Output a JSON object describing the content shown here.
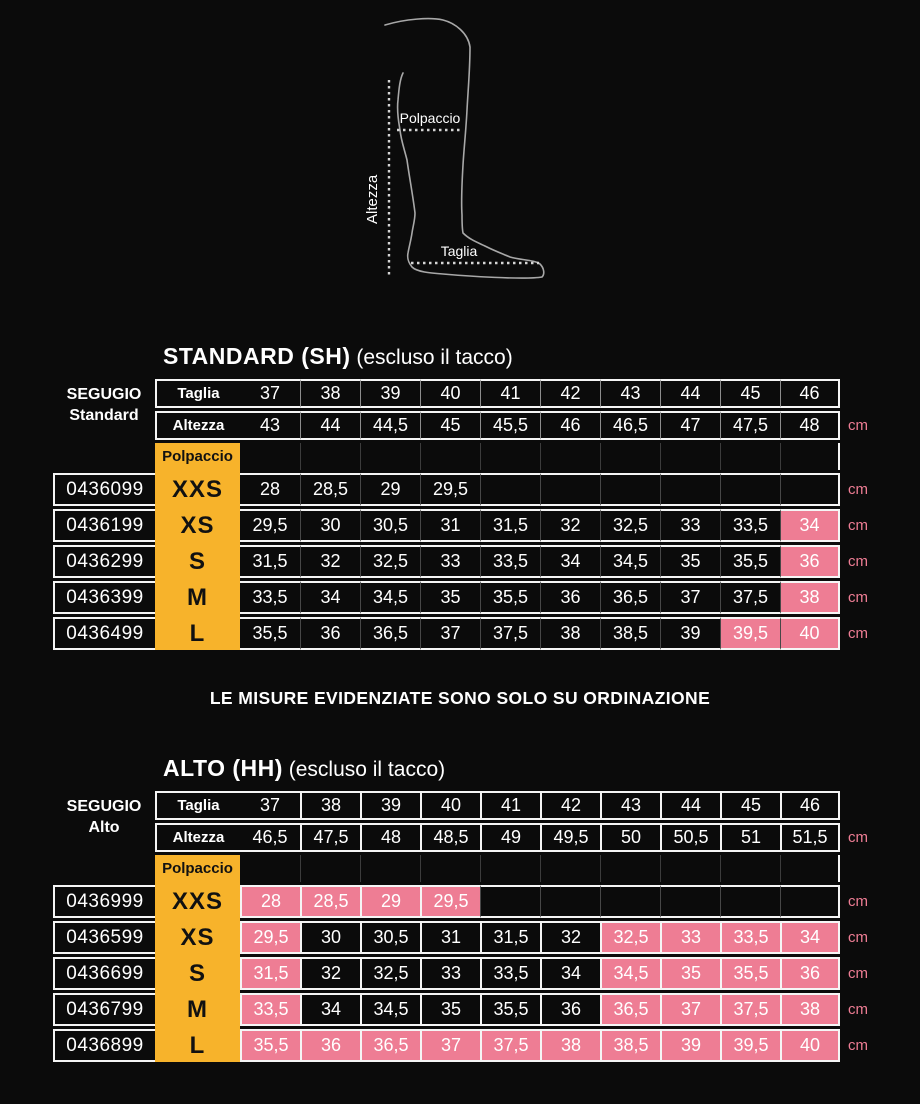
{
  "diagram": {
    "calf_label": "Polpaccio",
    "height_label": "Altezza",
    "size_label": "Taglia"
  },
  "note": "LE MISURE EVIDENZIATE SONO SOLO SU ORDINAZIONE",
  "colors": {
    "yellow": "#F7B32B",
    "pink": "#EE7D94",
    "cm_text": "#EE7D94",
    "border": "#F5F5F5",
    "background": "#0B0B0B"
  },
  "tables": [
    {
      "title_bold": "STANDARD (SH)",
      "title_rest": " (escluso il tacco)",
      "side_label_1": "SEGUGIO",
      "side_label_2": "Standard",
      "unit": "cm",
      "taglia_label": "Taglia",
      "altezza_label": "Altezza",
      "polpaccio_label": "Polpaccio",
      "taglia": [
        "37",
        "38",
        "39",
        "40",
        "41",
        "42",
        "43",
        "44",
        "45",
        "46"
      ],
      "altezza": [
        "43",
        "44",
        "44,5",
        "45",
        "45,5",
        "46",
        "46,5",
        "47",
        "47,5",
        "48"
      ],
      "rows": [
        {
          "code": "0436099",
          "size": "XXS",
          "values": [
            "28",
            "28,5",
            "29",
            "29,5",
            "",
            "",
            "",
            "",
            "",
            ""
          ],
          "pink": []
        },
        {
          "code": "0436199",
          "size": "XS",
          "values": [
            "29,5",
            "30",
            "30,5",
            "31",
            "31,5",
            "32",
            "32,5",
            "33",
            "33,5",
            "34"
          ],
          "pink": [
            9
          ]
        },
        {
          "code": "0436299",
          "size": "S",
          "values": [
            "31,5",
            "32",
            "32,5",
            "33",
            "33,5",
            "34",
            "34,5",
            "35",
            "35,5",
            "36"
          ],
          "pink": [
            9
          ]
        },
        {
          "code": "0436399",
          "size": "M",
          "values": [
            "33,5",
            "34",
            "34,5",
            "35",
            "35,5",
            "36",
            "36,5",
            "37",
            "37,5",
            "38"
          ],
          "pink": [
            9
          ]
        },
        {
          "code": "0436499",
          "size": "L",
          "values": [
            "35,5",
            "36",
            "36,5",
            "37",
            "37,5",
            "38",
            "38,5",
            "39",
            "39,5",
            "40"
          ],
          "pink": [
            8,
            9
          ]
        }
      ]
    },
    {
      "title_bold": "ALTO (HH)",
      "title_rest": " (escluso il tacco)",
      "side_label_1": "SEGUGIO",
      "side_label_2": "Alto",
      "unit": "cm",
      "taglia_label": "Taglia",
      "altezza_label": "Altezza",
      "polpaccio_label": "Polpaccio",
      "taglia": [
        "37",
        "38",
        "39",
        "40",
        "41",
        "42",
        "43",
        "44",
        "45",
        "46"
      ],
      "altezza": [
        "46,5",
        "47,5",
        "48",
        "48,5",
        "49",
        "49,5",
        "50",
        "50,5",
        "51",
        "51,5"
      ],
      "rows": [
        {
          "code": "0436999",
          "size": "XXS",
          "values": [
            "28",
            "28,5",
            "29",
            "29,5",
            "",
            "",
            "",
            "",
            "",
            ""
          ],
          "pink": [
            0,
            1,
            2,
            3
          ]
        },
        {
          "code": "0436599",
          "size": "XS",
          "values": [
            "29,5",
            "30",
            "30,5",
            "31",
            "31,5",
            "32",
            "32,5",
            "33",
            "33,5",
            "34"
          ],
          "pink": [
            0,
            6,
            7,
            8,
            9
          ]
        },
        {
          "code": "0436699",
          "size": "S",
          "values": [
            "31,5",
            "32",
            "32,5",
            "33",
            "33,5",
            "34",
            "34,5",
            "35",
            "35,5",
            "36"
          ],
          "pink": [
            0,
            6,
            7,
            8,
            9
          ]
        },
        {
          "code": "0436799",
          "size": "M",
          "values": [
            "33,5",
            "34",
            "34,5",
            "35",
            "35,5",
            "36",
            "36,5",
            "37",
            "37,5",
            "38"
          ],
          "pink": [
            0,
            6,
            7,
            8,
            9
          ]
        },
        {
          "code": "0436899",
          "size": "L",
          "values": [
            "35,5",
            "36",
            "36,5",
            "37",
            "37,5",
            "38",
            "38,5",
            "39",
            "39,5",
            "40"
          ],
          "pink": [
            0,
            1,
            2,
            3,
            4,
            5,
            6,
            7,
            8,
            9
          ]
        }
      ]
    }
  ]
}
